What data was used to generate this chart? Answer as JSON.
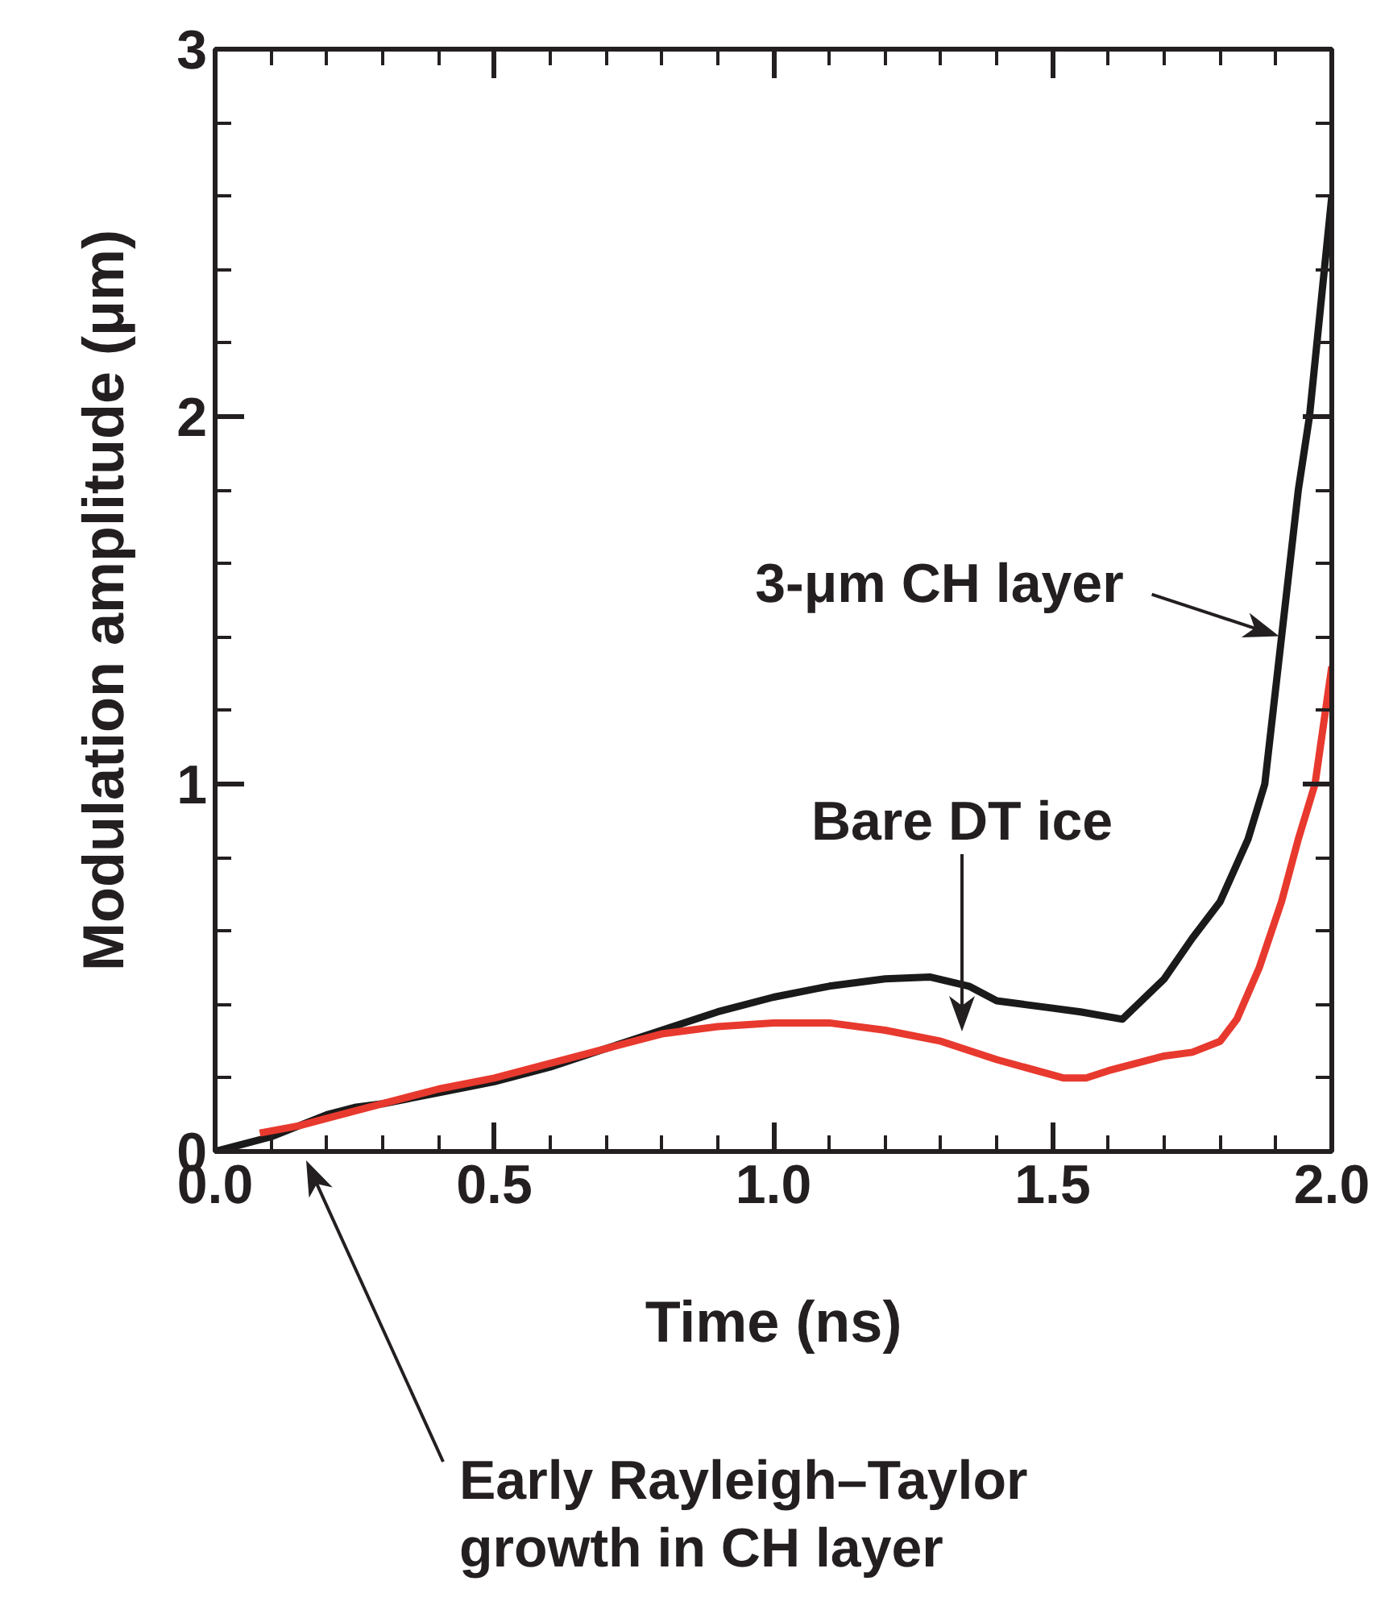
{
  "chart_data": {
    "type": "line",
    "xlabel": "Time (ns)",
    "ylabel": "Modulation amplitude (μm)",
    "xlim": [
      0,
      2.0
    ],
    "ylim": [
      0,
      3
    ],
    "xticks": [
      {
        "value": 0,
        "label": "0.0"
      },
      {
        "value": 0.5,
        "label": "0.5"
      },
      {
        "value": 1.0,
        "label": "1.0"
      },
      {
        "value": 1.5,
        "label": "1.5"
      },
      {
        "value": 2.0,
        "label": "2.0"
      }
    ],
    "yticks": [
      0,
      1,
      2,
      3
    ],
    "grid": false,
    "line_style": "solid",
    "marker": "none",
    "series": [
      {
        "color": "#1a1a1a",
        "x": [
          0,
          0.05,
          0.1,
          0.15,
          0.2,
          0.25,
          0.3,
          0.4,
          0.5,
          0.6,
          0.7,
          0.8,
          0.9,
          1.0,
          1.1,
          1.2,
          1.28,
          1.35,
          1.4,
          1.45,
          1.5,
          1.55,
          1.625,
          1.7,
          1.75,
          1.8,
          1.85,
          1.88,
          1.91,
          1.94,
          1.96,
          1.98,
          2.0
        ],
        "values": [
          0,
          0.02,
          0.04,
          0.07,
          0.1,
          0.12,
          0.13,
          0.16,
          0.19,
          0.23,
          0.28,
          0.33,
          0.38,
          0.42,
          0.45,
          0.47,
          0.475,
          0.45,
          0.41,
          0.4,
          0.39,
          0.38,
          0.36,
          0.47,
          0.58,
          0.68,
          0.85,
          1.0,
          1.4,
          1.8,
          2.0,
          2.3,
          2.6
        ]
      },
      {
        "color": "#e8392e",
        "x": [
          0.08,
          0.15,
          0.2,
          0.3,
          0.4,
          0.5,
          0.6,
          0.7,
          0.8,
          0.9,
          1.0,
          1.1,
          1.2,
          1.3,
          1.4,
          1.52,
          1.56,
          1.6,
          1.7,
          1.75,
          1.8,
          1.83,
          1.87,
          1.91,
          1.94,
          1.97,
          2.0
        ],
        "values": [
          0.05,
          0.07,
          0.09,
          0.13,
          0.17,
          0.2,
          0.24,
          0.28,
          0.32,
          0.34,
          0.35,
          0.35,
          0.33,
          0.3,
          0.25,
          0.2,
          0.2,
          0.22,
          0.26,
          0.27,
          0.3,
          0.36,
          0.5,
          0.68,
          0.85,
          1.0,
          1.32
        ]
      }
    ],
    "annotations": [
      {
        "text": "3-μm CH layer",
        "x": 1.91,
        "y": 1.4
      },
      "Bare DT ice",
      "Early Rayleigh–Taylor\ngrowth in CH layer"
    ]
  }
}
